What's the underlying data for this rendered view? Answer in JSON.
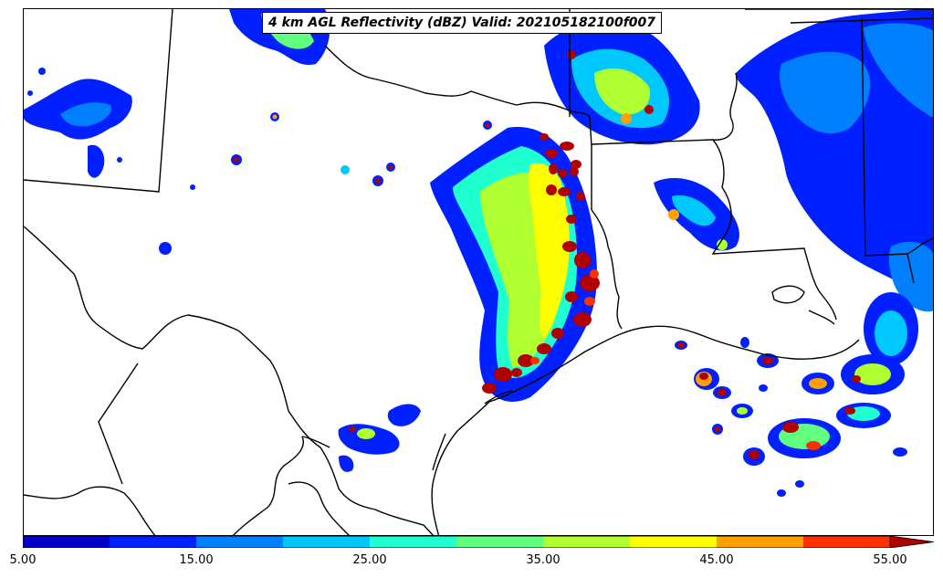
{
  "title": "4 km AGL Reflectivity (dBZ) Valid: 202105182100f007",
  "colorbar": {
    "levels": [
      5,
      10,
      15,
      20,
      25,
      30,
      35,
      40,
      45,
      50,
      55
    ],
    "colors": [
      "#0000c8",
      "#0020ff",
      "#0080ff",
      "#00c8ff",
      "#20ffd0",
      "#60ff80",
      "#b0ff30",
      "#ffff00",
      "#ffa000",
      "#ff3000",
      "#b00000"
    ],
    "extend": "max",
    "tick_labels": [
      "5.00",
      "15.00",
      "25.00",
      "35.00",
      "45.00",
      "55.00"
    ]
  },
  "colors": {
    "boundary": "#000000",
    "background": "#ffffff"
  }
}
